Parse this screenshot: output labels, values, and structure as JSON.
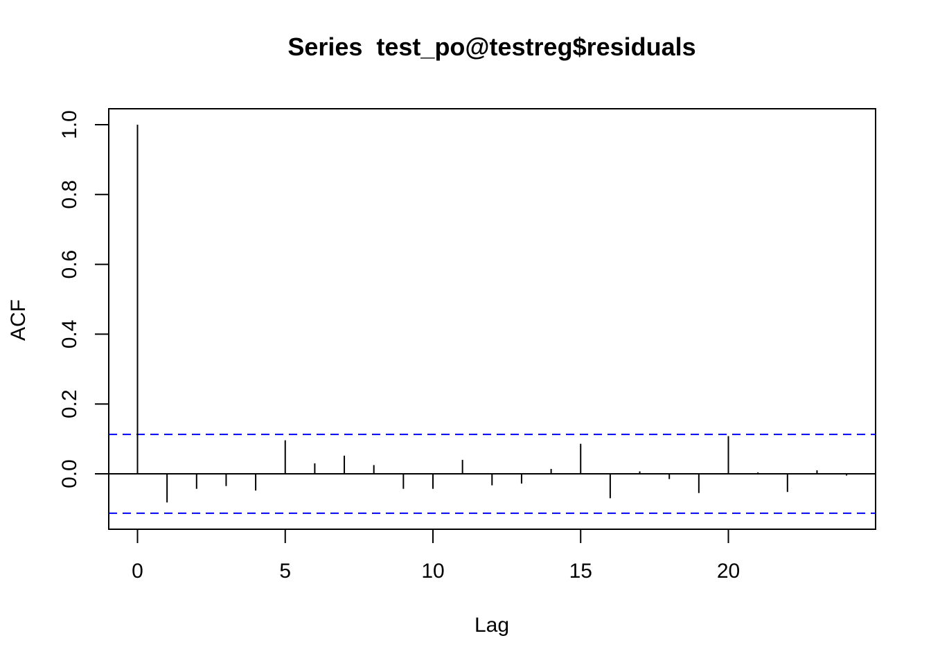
{
  "chart_data": {
    "type": "bar",
    "title": "Series  test_po@testreg$residuals",
    "xlabel": "Lag",
    "ylabel": "ACF",
    "xlim": [
      -1,
      25
    ],
    "ylim": [
      -0.16,
      1.05
    ],
    "x_ticks": [
      0,
      5,
      10,
      15,
      20
    ],
    "x_tick_labels": [
      "0",
      "5",
      "10",
      "15",
      "20"
    ],
    "y_ticks": [
      0.0,
      0.2,
      0.4,
      0.6,
      0.8,
      1.0
    ],
    "y_tick_labels": [
      "0.0",
      "0.2",
      "0.4",
      "0.6",
      "0.8",
      "1.0"
    ],
    "grid": false,
    "series": [
      {
        "x": [
          0,
          1,
          2,
          3,
          4,
          5,
          6,
          7,
          8,
          9,
          10,
          11,
          12,
          13,
          14,
          15,
          16,
          17,
          18,
          19,
          20,
          21,
          22,
          23,
          24
        ],
        "values": [
          1.0,
          -0.082,
          -0.043,
          -0.035,
          -0.048,
          0.096,
          0.03,
          0.052,
          0.025,
          -0.043,
          -0.043,
          0.04,
          -0.033,
          -0.028,
          0.014,
          0.086,
          -0.07,
          0.007,
          -0.015,
          -0.055,
          0.108,
          0.004,
          -0.052,
          0.01,
          -0.005
        ]
      }
    ],
    "confidence_bounds": [
      0.1128,
      -0.1128
    ],
    "colors": {
      "lines": "#000000",
      "bounds": "#0000ff"
    }
  }
}
